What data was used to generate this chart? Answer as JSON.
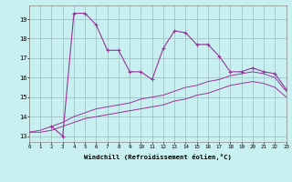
{
  "x": [
    0,
    1,
    2,
    3,
    4,
    5,
    6,
    7,
    8,
    9,
    10,
    11,
    12,
    13,
    14,
    15,
    16,
    17,
    18,
    19,
    20,
    21,
    22,
    23
  ],
  "y_main": [
    13.2,
    null,
    13.5,
    13.0,
    19.3,
    19.3,
    18.7,
    17.4,
    17.4,
    16.3,
    16.3,
    15.9,
    17.5,
    18.4,
    18.3,
    17.7,
    17.7,
    17.1,
    16.3,
    16.3,
    16.5,
    16.3,
    16.2,
    15.4
  ],
  "y_upper": [
    13.2,
    13.3,
    13.5,
    13.7,
    14.0,
    14.2,
    14.4,
    14.5,
    14.6,
    14.7,
    14.9,
    15.0,
    15.1,
    15.3,
    15.5,
    15.6,
    15.8,
    15.9,
    16.1,
    16.2,
    16.3,
    16.2,
    16.0,
    15.3
  ],
  "y_lower": [
    13.2,
    13.2,
    13.3,
    13.5,
    13.7,
    13.9,
    14.0,
    14.1,
    14.2,
    14.3,
    14.4,
    14.5,
    14.6,
    14.8,
    14.9,
    15.1,
    15.2,
    15.4,
    15.6,
    15.7,
    15.8,
    15.7,
    15.5,
    15.0
  ],
  "bg_color": "#c8f0f0",
  "line_color": "#993399",
  "grid_color": "#99bbbb",
  "yticks": [
    13,
    14,
    15,
    16,
    17,
    18,
    19
  ],
  "xticks": [
    0,
    1,
    2,
    3,
    4,
    5,
    6,
    7,
    8,
    9,
    10,
    11,
    12,
    13,
    14,
    15,
    16,
    17,
    18,
    19,
    20,
    21,
    22,
    23
  ],
  "xlabel": "Windchill (Refroidissement éolien,°C)",
  "ylim": [
    12.7,
    19.7
  ],
  "xlim": [
    0,
    23
  ]
}
